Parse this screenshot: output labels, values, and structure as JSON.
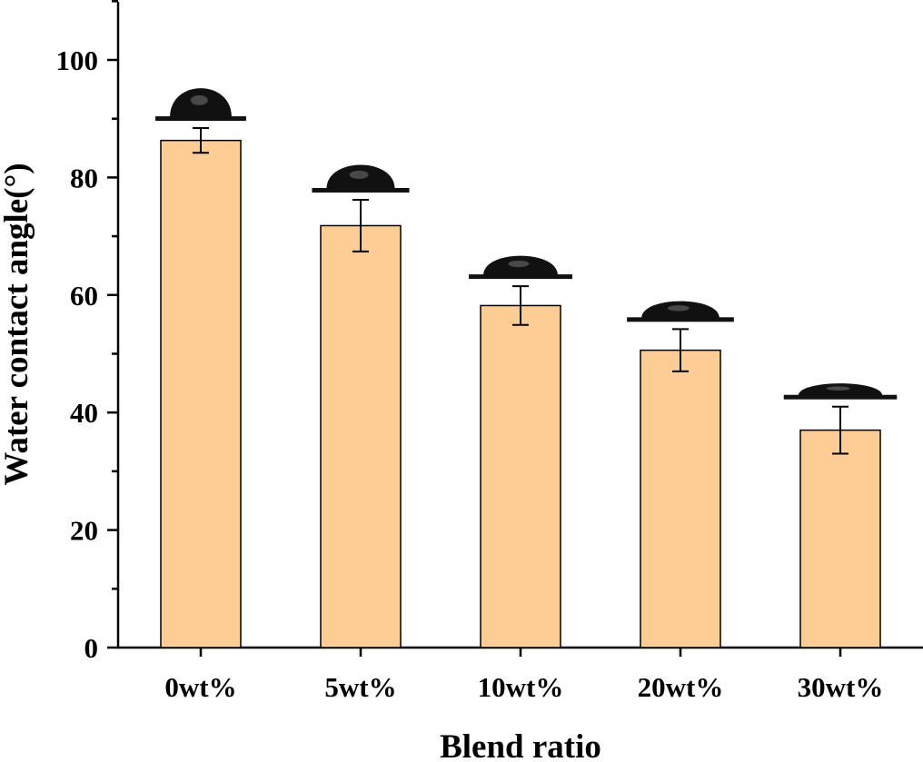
{
  "chart_data": {
    "type": "bar",
    "xlabel": "Blend ratio",
    "ylabel": "Water contact angle(°)",
    "categories": [
      "0wt%",
      "5wt%",
      "10wt%",
      "20wt%",
      "30wt%"
    ],
    "series": [
      {
        "values": [
          86.3,
          71.8,
          58.2,
          50.6,
          37.0
        ],
        "errors": [
          2.1,
          4.4,
          3.3,
          3.6,
          4.0
        ]
      }
    ],
    "ylim": [
      0,
      110
    ],
    "yticks": [
      0,
      20,
      40,
      60,
      80,
      100
    ],
    "grid": false,
    "legend": "none",
    "insets": "water droplet images above each bar"
  },
  "colors": {
    "bar_fill": "#FDCD95",
    "bar_edge": "#000000",
    "droplet": "#111111"
  }
}
